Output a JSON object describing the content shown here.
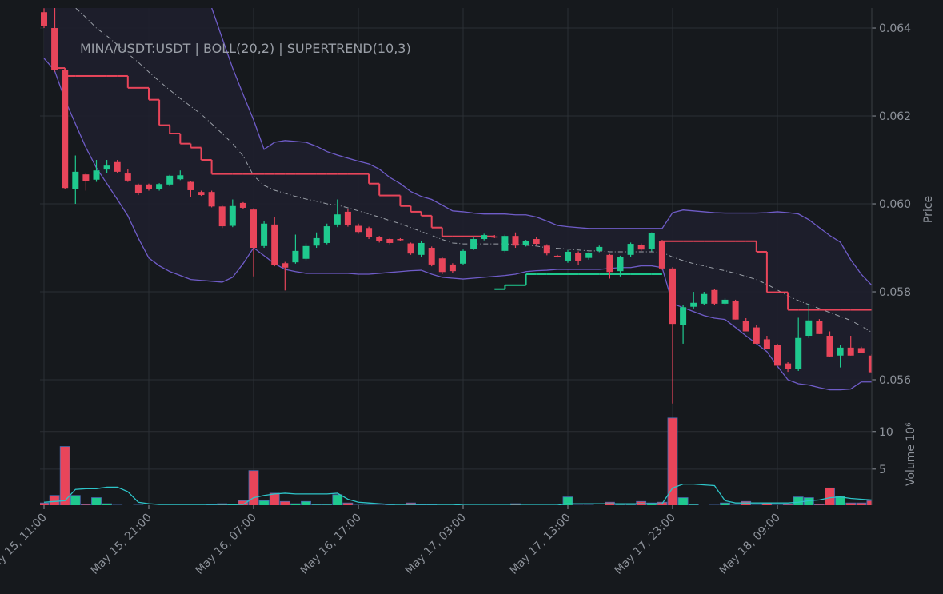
{
  "chart_data": [
    {
      "type": "candlestick",
      "title": "MINA/USDT:USDT | BOLL(20,2) | SUPERTREND(10,3)",
      "ylabel": "Price",
      "x": [
        "May 15, 11:00",
        "May 15, 12:00",
        "May 15, 13:00",
        "May 15, 14:00",
        "May 15, 15:00",
        "May 15, 16:00",
        "May 15, 17:00",
        "May 15, 18:00",
        "May 15, 19:00",
        "May 15, 20:00",
        "May 15, 21:00",
        "May 15, 22:00",
        "May 15, 23:00",
        "May 16, 00:00",
        "May 16, 01:00",
        "May 16, 02:00",
        "May 16, 03:00",
        "May 16, 04:00",
        "May 16, 05:00",
        "May 16, 06:00",
        "May 16, 07:00",
        "May 16, 08:00",
        "May 16, 09:00",
        "May 16, 10:00",
        "May 16, 11:00",
        "May 16, 12:00",
        "May 16, 13:00",
        "May 16, 14:00",
        "May 16, 15:00",
        "May 16, 16:00",
        "May 16, 17:00",
        "May 16, 18:00",
        "May 16, 19:00",
        "May 16, 20:00",
        "May 16, 21:00",
        "May 16, 22:00",
        "May 16, 23:00",
        "May 17, 00:00",
        "May 17, 01:00",
        "May 17, 02:00",
        "May 17, 03:00",
        "May 17, 04:00",
        "May 17, 05:00",
        "May 17, 06:00",
        "May 17, 07:00",
        "May 17, 08:00",
        "May 17, 09:00",
        "May 17, 10:00",
        "May 17, 11:00",
        "May 17, 12:00",
        "May 17, 13:00",
        "May 17, 14:00",
        "May 17, 15:00",
        "May 17, 16:00",
        "May 17, 17:00",
        "May 17, 18:00",
        "May 17, 19:00",
        "May 17, 20:00",
        "May 17, 21:00",
        "May 17, 22:00",
        "May 17, 23:00",
        "May 18, 00:00",
        "May 18, 01:00",
        "May 18, 02:00",
        "May 18, 03:00",
        "May 18, 04:00",
        "May 18, 05:00",
        "May 18, 06:00",
        "May 18, 07:00",
        "May 18, 08:00",
        "May 18, 09:00",
        "May 18, 10:00",
        "May 18, 11:00",
        "May 18, 12:00",
        "May 18, 13:00",
        "May 18, 14:00",
        "May 18, 15:00",
        "May 18, 16:00",
        "May 18, 17:00",
        "May 18, 18:00"
      ],
      "open": [
        0.06436,
        0.064,
        0.06304,
        0.06033,
        0.06067,
        0.06055,
        0.06078,
        0.06095,
        0.06069,
        0.06044,
        0.06044,
        0.06033,
        0.06044,
        0.06056,
        0.0605,
        0.06027,
        0.06027,
        0.05994,
        0.0595,
        0.06002,
        0.05987,
        0.05904,
        0.05953,
        0.05865,
        0.05867,
        0.05875,
        0.05905,
        0.05911,
        0.05953,
        0.05982,
        0.0595,
        0.05945,
        0.05925,
        0.0592,
        0.0592,
        0.0591,
        0.05884,
        0.059,
        0.05876,
        0.05862,
        0.05864,
        0.05898,
        0.0592,
        0.05926,
        0.05893,
        0.05927,
        0.05907,
        0.0592,
        0.05905,
        0.05882,
        0.05871,
        0.05889,
        0.05877,
        0.05893,
        0.05884,
        0.05847,
        0.05884,
        0.05906,
        0.05897,
        0.05915,
        0.05853,
        0.05725,
        0.05766,
        0.05773,
        0.05804,
        0.05773,
        0.05779,
        0.05733,
        0.05719,
        0.05692,
        0.05679,
        0.05637,
        0.05624,
        0.057,
        0.05733,
        0.057,
        0.05655,
        0.05673,
        0.05672,
        0.05655
      ],
      "high": [
        0.06445,
        0.06445,
        0.06304,
        0.0611,
        0.0607,
        0.061,
        0.061,
        0.061,
        0.0608,
        0.06046,
        0.06046,
        0.06047,
        0.06066,
        0.06076,
        0.06052,
        0.0603,
        0.0603,
        0.05996,
        0.0601,
        0.06004,
        0.0599,
        0.0596,
        0.0597,
        0.05868,
        0.0593,
        0.0591,
        0.05935,
        0.05955,
        0.0601,
        0.05988,
        0.05955,
        0.05948,
        0.05927,
        0.05922,
        0.05922,
        0.05912,
        0.05915,
        0.05903,
        0.0588,
        0.05865,
        0.05896,
        0.05924,
        0.05932,
        0.05929,
        0.0593,
        0.05935,
        0.05918,
        0.05925,
        0.05908,
        0.05884,
        0.05895,
        0.05892,
        0.0589,
        0.05905,
        0.05886,
        0.05882,
        0.05912,
        0.0591,
        0.05935,
        0.05918,
        0.05856,
        0.0577,
        0.058,
        0.058,
        0.05806,
        0.05785,
        0.05782,
        0.0574,
        0.05725,
        0.057,
        0.05682,
        0.0564,
        0.05741,
        0.05773,
        0.05738,
        0.0571,
        0.0568,
        0.057,
        0.05675,
        0.05658
      ],
      "low": [
        0.064,
        0.063,
        0.06033,
        0.06,
        0.0603,
        0.0605,
        0.0607,
        0.0607,
        0.0605,
        0.0602,
        0.0603,
        0.0603,
        0.0604,
        0.06054,
        0.06015,
        0.06018,
        0.05992,
        0.05945,
        0.05947,
        0.05988,
        0.05835,
        0.059,
        0.05858,
        0.05803,
        0.05864,
        0.05872,
        0.059,
        0.05908,
        0.05947,
        0.05948,
        0.05932,
        0.0592,
        0.05912,
        0.05908,
        0.05916,
        0.05884,
        0.0588,
        0.05858,
        0.0584,
        0.05843,
        0.0586,
        0.05895,
        0.05917,
        0.05922,
        0.0589,
        0.059,
        0.05903,
        0.05905,
        0.05883,
        0.05878,
        0.05866,
        0.0586,
        0.05873,
        0.0589,
        0.0583,
        0.05835,
        0.0588,
        0.05893,
        0.05892,
        0.0585,
        0.05546,
        0.05682,
        0.05762,
        0.0577,
        0.0577,
        0.0577,
        0.05737,
        0.0571,
        0.05682,
        0.0567,
        0.05632,
        0.05618,
        0.0562,
        0.05695,
        0.05704,
        0.05652,
        0.05628,
        0.05655,
        0.0566,
        0.05615
      ],
      "close": [
        0.06404,
        0.06304,
        0.06036,
        0.06073,
        0.06051,
        0.06076,
        0.06087,
        0.06073,
        0.06053,
        0.06025,
        0.06033,
        0.06045,
        0.06064,
        0.06065,
        0.06031,
        0.0602,
        0.05994,
        0.05949,
        0.05995,
        0.05991,
        0.059,
        0.05955,
        0.0586,
        0.05855,
        0.05893,
        0.05904,
        0.05922,
        0.05949,
        0.05976,
        0.05951,
        0.05936,
        0.05924,
        0.05915,
        0.05911,
        0.05918,
        0.05887,
        0.05911,
        0.05862,
        0.05845,
        0.05847,
        0.05893,
        0.0592,
        0.05929,
        0.05925,
        0.05927,
        0.05905,
        0.05915,
        0.05909,
        0.05887,
        0.0588,
        0.05891,
        0.05871,
        0.05888,
        0.05902,
        0.05845,
        0.0588,
        0.05909,
        0.05896,
        0.05933,
        0.05853,
        0.05727,
        0.05765,
        0.05775,
        0.05795,
        0.05773,
        0.05782,
        0.05737,
        0.0571,
        0.05682,
        0.0567,
        0.05632,
        0.05624,
        0.05695,
        0.05735,
        0.05704,
        0.05653,
        0.05673,
        0.05655,
        0.05661,
        0.05617
      ],
      "bb_upper": [
        0.0672,
        0.0672,
        0.0671,
        0.067,
        0.0669,
        0.0668,
        0.0667,
        0.0666,
        0.0665,
        0.0664,
        0.0663,
        0.0661,
        0.0659,
        0.0656,
        0.0653,
        0.0649,
        0.06446,
        0.06377,
        0.06309,
        0.06249,
        0.06191,
        0.06124,
        0.0614,
        0.06144,
        0.06142,
        0.0614,
        0.06131,
        0.06119,
        0.06111,
        0.06104,
        0.06097,
        0.06091,
        0.06079,
        0.0606,
        0.06046,
        0.06028,
        0.06017,
        0.0601,
        0.05997,
        0.05984,
        0.05982,
        0.05979,
        0.05977,
        0.05977,
        0.05977,
        0.05975,
        0.05975,
        0.0597,
        0.05961,
        0.05951,
        0.05948,
        0.05946,
        0.05944,
        0.05944,
        0.05944,
        0.05944,
        0.05944,
        0.05944,
        0.05944,
        0.05944,
        0.0598,
        0.05986,
        0.05984,
        0.05982,
        0.0598,
        0.05979,
        0.05979,
        0.05979,
        0.05979,
        0.0598,
        0.05982,
        0.0598,
        0.05977,
        0.05964,
        0.05946,
        0.05928,
        0.05913,
        0.05873,
        0.0584,
        0.05815
      ],
      "bb_middle": [
        0.06537,
        0.065,
        0.06464,
        0.06446,
        0.06424,
        0.064,
        0.06382,
        0.06362,
        0.06342,
        0.06322,
        0.063,
        0.06279,
        0.06259,
        0.0624,
        0.06222,
        0.06204,
        0.06182,
        0.0616,
        0.06137,
        0.06109,
        0.06064,
        0.06042,
        0.06031,
        0.06024,
        0.06017,
        0.06011,
        0.06006,
        0.06,
        0.05997,
        0.05991,
        0.05984,
        0.05977,
        0.0597,
        0.05962,
        0.05955,
        0.05946,
        0.05937,
        0.05928,
        0.05919,
        0.05911,
        0.05909,
        0.05909,
        0.05909,
        0.05909,
        0.05909,
        0.05908,
        0.05906,
        0.05904,
        0.059,
        0.05899,
        0.05897,
        0.05895,
        0.05893,
        0.05893,
        0.05891,
        0.05891,
        0.05891,
        0.05891,
        0.05891,
        0.0589,
        0.05879,
        0.05871,
        0.05864,
        0.05859,
        0.05853,
        0.05848,
        0.05842,
        0.05835,
        0.05828,
        0.05817,
        0.05804,
        0.05791,
        0.0578,
        0.05771,
        0.05762,
        0.05753,
        0.05744,
        0.05735,
        0.05722,
        0.05708
      ],
      "bb_lower": [
        0.06331,
        0.06304,
        0.06237,
        0.06182,
        0.06128,
        0.06082,
        0.06046,
        0.0601,
        0.05973,
        0.05922,
        0.05877,
        0.05859,
        0.05846,
        0.05837,
        0.05828,
        0.05826,
        0.05824,
        0.05822,
        0.05833,
        0.05864,
        0.059,
        0.05882,
        0.05864,
        0.05851,
        0.05846,
        0.05842,
        0.05842,
        0.05842,
        0.05842,
        0.05842,
        0.0584,
        0.0584,
        0.05842,
        0.05844,
        0.05846,
        0.05848,
        0.05849,
        0.0584,
        0.05833,
        0.05831,
        0.05829,
        0.05831,
        0.05833,
        0.05835,
        0.05837,
        0.0584,
        0.05846,
        0.05848,
        0.05849,
        0.05851,
        0.05851,
        0.05851,
        0.05851,
        0.05851,
        0.05853,
        0.05855,
        0.05855,
        0.05859,
        0.05859,
        0.05855,
        0.05773,
        0.05764,
        0.05755,
        0.05746,
        0.0574,
        0.05737,
        0.05719,
        0.057,
        0.05682,
        0.05664,
        0.05631,
        0.056,
        0.05591,
        0.05588,
        0.05582,
        0.05577,
        0.05577,
        0.05579,
        0.05595,
        0.05595
      ],
      "supertrend_down": [
        0.0647,
        0.06309,
        0.06291,
        0.06291,
        0.06291,
        0.06291,
        0.06291,
        0.06291,
        0.06264,
        0.06264,
        0.06237,
        0.06179,
        0.0616,
        0.06137,
        0.06128,
        0.061,
        0.06068,
        0.06068,
        0.06068,
        0.06068,
        0.06068,
        0.06068,
        0.06068,
        0.06068,
        0.06068,
        0.06068,
        0.06068,
        0.06068,
        0.06068,
        0.06068,
        0.06068,
        0.06046,
        0.06019,
        0.06019,
        0.05995,
        0.05982,
        0.05973,
        0.05946,
        0.05926,
        0.05926,
        0.05926,
        0.05926,
        0.05926,
        null,
        null,
        null,
        null,
        null,
        null,
        null,
        null,
        null,
        null,
        null,
        null,
        null,
        null,
        null,
        null,
        0.05915,
        0.05915,
        0.05915,
        0.05915,
        0.05915,
        0.05915,
        0.05915,
        0.05915,
        0.05915,
        0.05891,
        0.05799,
        0.05799,
        0.05759,
        0.05759,
        0.05759,
        0.05759,
        0.05759,
        0.05759,
        0.05759,
        0.05759,
        0.05759
      ],
      "supertrend_up": [
        null,
        null,
        null,
        null,
        null,
        null,
        null,
        null,
        null,
        null,
        null,
        null,
        null,
        null,
        null,
        null,
        null,
        null,
        null,
        null,
        null,
        null,
        null,
        null,
        null,
        null,
        null,
        null,
        null,
        null,
        null,
        null,
        null,
        null,
        null,
        null,
        null,
        null,
        null,
        null,
        null,
        null,
        null,
        0.05806,
        0.05815,
        0.05815,
        0.0584,
        0.0584,
        0.0584,
        0.0584,
        0.0584,
        0.0584,
        0.0584,
        0.0584,
        0.0584,
        0.0584,
        0.0584,
        0.0584,
        0.0584,
        null,
        null,
        null,
        null,
        null,
        null,
        null,
        null,
        null,
        null,
        null,
        null,
        null,
        null,
        null,
        null,
        null,
        null,
        null,
        null,
        null
      ],
      "up_color": "#1fc98e",
      "down_color": "#e8455a",
      "band_color": "#6f5cc8",
      "band_fill": "#1e1f2e",
      "middle_color": "#9a9fa7",
      "ylim": [
        0.055182,
        0.064455
      ],
      "yticks": [
        0.056,
        0.058,
        {
          "value": 0.06,
          "label": "0.060"
        },
        0.062,
        0.064
      ],
      "grid": true
    },
    {
      "type": "bar",
      "ylabel": "Volume",
      "offset_label": "10⁶",
      "values": [
        0.5,
        1.5,
        8.0,
        1.5,
        0.3,
        1.2,
        0.4,
        0.2,
        0.1,
        0.2,
        0.1,
        0.1,
        0.1,
        0.1,
        0.1,
        0.1,
        0.2,
        0.4,
        0.3,
        0.8,
        4.8,
        0.8,
        1.8,
        0.7,
        0.4,
        0.7,
        0.3,
        0.3,
        1.6,
        0.5,
        0.2,
        0.2,
        0.2,
        0.2,
        0.1,
        0.5,
        0.2,
        0.2,
        0.1,
        0.1,
        0.1,
        0.1,
        0.1,
        0.1,
        0.1,
        0.4,
        0.1,
        0.1,
        0.2,
        0.1,
        1.3,
        0.2,
        0.2,
        0.1,
        0.6,
        0.3,
        0.3,
        0.7,
        0.5,
        0.6,
        11.8,
        1.2,
        0.3,
        0.1,
        0.2,
        0.5,
        0.2,
        0.7,
        0.2,
        0.5,
        0.2,
        0.3,
        1.3,
        1.2,
        0.3,
        2.5,
        1.4,
        0.5,
        0.5,
        0.8
      ],
      "ma_values": [
        0.6,
        0.7,
        0.8,
        2.3,
        2.4,
        2.4,
        2.6,
        2.6,
        2.0,
        0.6,
        0.4,
        0.3,
        0.3,
        0.3,
        0.3,
        0.3,
        0.3,
        0.3,
        0.3,
        0.3,
        1.2,
        1.5,
        1.7,
        1.8,
        1.7,
        1.7,
        1.7,
        1.7,
        1.8,
        1.0,
        0.6,
        0.5,
        0.4,
        0.3,
        0.3,
        0.3,
        0.3,
        0.3,
        0.3,
        0.3,
        0.2,
        0.2,
        0.2,
        0.2,
        0.2,
        0.2,
        0.2,
        0.2,
        0.2,
        0.2,
        0.4,
        0.4,
        0.4,
        0.4,
        0.4,
        0.4,
        0.4,
        0.4,
        0.4,
        0.4,
        2.5,
        3.0,
        3.0,
        2.9,
        2.8,
        0.8,
        0.5,
        0.5,
        0.5,
        0.5,
        0.5,
        0.5,
        0.6,
        0.8,
        0.9,
        1.2,
        1.3,
        1.1,
        1.0,
        0.9
      ],
      "ma_color": "#2ec4c8",
      "ylim": [
        0.2,
        12.1
      ],
      "yticks": [
        5,
        10
      ],
      "grid": true
    }
  ]
}
